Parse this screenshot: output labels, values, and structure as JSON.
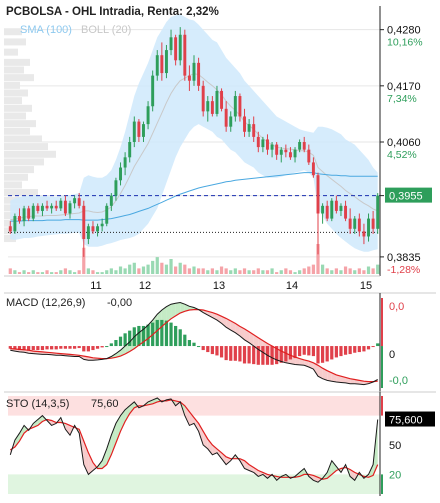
{
  "header": {
    "title": "PCBOLSA - OHL Intradia, Renta: 2,32%",
    "sma_label": "SMA (100)",
    "boll_label": "BOLL (20)"
  },
  "colors": {
    "up": "#2e9e5b",
    "down": "#e0404a",
    "boll_fill": "#cfe9fb",
    "sma": "#4aa8e0",
    "last_price_bg": "#2e9e5b",
    "stoch_value_bg": "#000000",
    "overbought_band": "#fde0e0",
    "oversold_band": "#e0f5e0",
    "grid": "#e6e6e6"
  },
  "chart_data": [
    {
      "type": "candlestick",
      "name": "price",
      "x_ticks": [
        "11",
        "12",
        "13",
        "14",
        "15"
      ],
      "y_ticks": [
        {
          "price": "0,4280",
          "pct": "10,16%"
        },
        {
          "price": "0,4170",
          "pct": "7,34%"
        },
        {
          "price": "0,4060",
          "pct": "4,52%"
        },
        {
          "price": "0,3955",
          "pct": ""
        },
        {
          "price": "0,3835",
          "pct": "-1,28%"
        }
      ],
      "ylim": [
        0.3825,
        0.4295
      ],
      "last_price": "0,3955",
      "reference_price": 0.3883,
      "ohlc": [
        [
          0.3895,
          0.3905,
          0.388,
          0.3885
        ],
        [
          0.3885,
          0.392,
          0.388,
          0.3915
        ],
        [
          0.3915,
          0.393,
          0.39,
          0.3905
        ],
        [
          0.3905,
          0.3935,
          0.3895,
          0.393
        ],
        [
          0.393,
          0.3935,
          0.3905,
          0.391
        ],
        [
          0.391,
          0.394,
          0.3905,
          0.3935
        ],
        [
          0.3935,
          0.394,
          0.392,
          0.3925
        ],
        [
          0.3925,
          0.394,
          0.3915,
          0.3935
        ],
        [
          0.3935,
          0.3945,
          0.3925,
          0.393
        ],
        [
          0.393,
          0.394,
          0.392,
          0.3935
        ],
        [
          0.3935,
          0.3945,
          0.3925,
          0.393
        ],
        [
          0.393,
          0.395,
          0.3925,
          0.3945
        ],
        [
          0.3945,
          0.3955,
          0.3915,
          0.392
        ],
        [
          0.392,
          0.3945,
          0.391,
          0.394
        ],
        [
          0.394,
          0.3955,
          0.393,
          0.395
        ],
        [
          0.395,
          0.396,
          0.393,
          0.3935
        ],
        [
          0.3935,
          0.3945,
          0.3835,
          0.387
        ],
        [
          0.387,
          0.39,
          0.386,
          0.3895
        ],
        [
          0.3895,
          0.3905,
          0.388,
          0.3885
        ],
        [
          0.3885,
          0.39,
          0.3875,
          0.3895
        ],
        [
          0.3895,
          0.391,
          0.3885,
          0.39
        ],
        [
          0.39,
          0.394,
          0.3895,
          0.3935
        ],
        [
          0.3935,
          0.396,
          0.3925,
          0.3955
        ],
        [
          0.3955,
          0.399,
          0.3945,
          0.3985
        ],
        [
          0.3985,
          0.402,
          0.3975,
          0.401
        ],
        [
          0.401,
          0.404,
          0.3995,
          0.403
        ],
        [
          0.403,
          0.407,
          0.402,
          0.406
        ],
        [
          0.406,
          0.411,
          0.405,
          0.41
        ],
        [
          0.41,
          0.4105,
          0.406,
          0.407
        ],
        [
          0.407,
          0.41,
          0.406,
          0.4095
        ],
        [
          0.4095,
          0.414,
          0.4085,
          0.413
        ],
        [
          0.413,
          0.42,
          0.412,
          0.419
        ],
        [
          0.419,
          0.424,
          0.418,
          0.423
        ],
        [
          0.423,
          0.4255,
          0.418,
          0.4195
        ],
        [
          0.4195,
          0.425,
          0.4185,
          0.424
        ],
        [
          0.424,
          0.428,
          0.423,
          0.4265
        ],
        [
          0.4265,
          0.427,
          0.421,
          0.422
        ],
        [
          0.422,
          0.4285,
          0.421,
          0.427
        ],
        [
          0.427,
          0.428,
          0.418,
          0.419
        ],
        [
          0.419,
          0.421,
          0.416,
          0.418
        ],
        [
          0.418,
          0.423,
          0.417,
          0.4215
        ],
        [
          0.4215,
          0.4225,
          0.416,
          0.417
        ],
        [
          0.417,
          0.418,
          0.411,
          0.412
        ],
        [
          0.412,
          0.415,
          0.41,
          0.414
        ],
        [
          0.414,
          0.415,
          0.411,
          0.4115
        ],
        [
          0.4115,
          0.417,
          0.411,
          0.416
        ],
        [
          0.416,
          0.4165,
          0.412,
          0.4125
        ],
        [
          0.4125,
          0.414,
          0.408,
          0.409
        ],
        [
          0.409,
          0.412,
          0.408,
          0.411
        ],
        [
          0.411,
          0.416,
          0.41,
          0.415
        ],
        [
          0.415,
          0.4155,
          0.41,
          0.411
        ],
        [
          0.411,
          0.4125,
          0.407,
          0.408
        ],
        [
          0.408,
          0.4105,
          0.407,
          0.4095
        ],
        [
          0.4095,
          0.411,
          0.406,
          0.407
        ],
        [
          0.407,
          0.408,
          0.404,
          0.405
        ],
        [
          0.405,
          0.407,
          0.404,
          0.4065
        ],
        [
          0.4065,
          0.4075,
          0.4035,
          0.4045
        ],
        [
          0.4045,
          0.406,
          0.403,
          0.4055
        ],
        [
          0.4055,
          0.406,
          0.4025,
          0.4035
        ],
        [
          0.4035,
          0.405,
          0.402,
          0.4045
        ],
        [
          0.4045,
          0.4055,
          0.403,
          0.404
        ],
        [
          0.404,
          0.405,
          0.4025,
          0.403
        ],
        [
          0.403,
          0.405,
          0.402,
          0.4045
        ],
        [
          0.4045,
          0.4065,
          0.404,
          0.406
        ],
        [
          0.406,
          0.407,
          0.404,
          0.4045
        ],
        [
          0.4045,
          0.4055,
          0.4015,
          0.402
        ],
        [
          0.402,
          0.403,
          0.399,
          0.3995
        ],
        [
          0.3995,
          0.4,
          0.384,
          0.392
        ],
        [
          0.392,
          0.394,
          0.39,
          0.3935
        ],
        [
          0.3935,
          0.3945,
          0.3905,
          0.391
        ],
        [
          0.391,
          0.395,
          0.3905,
          0.3945
        ],
        [
          0.3945,
          0.3955,
          0.392,
          0.3925
        ],
        [
          0.3925,
          0.394,
          0.3915,
          0.3935
        ],
        [
          0.3935,
          0.3945,
          0.3905,
          0.391
        ],
        [
          0.391,
          0.393,
          0.388,
          0.389
        ],
        [
          0.389,
          0.3915,
          0.388,
          0.391
        ],
        [
          0.391,
          0.392,
          0.3875,
          0.3885
        ],
        [
          0.3885,
          0.39,
          0.386,
          0.3875
        ],
        [
          0.3875,
          0.392,
          0.3865,
          0.391
        ],
        [
          0.391,
          0.3925,
          0.388,
          0.389
        ],
        [
          0.389,
          0.396,
          0.388,
          0.3955
        ]
      ],
      "volume": [
        3,
        2,
        1,
        2,
        1,
        2,
        1,
        1,
        2,
        1,
        1,
        2,
        3,
        2,
        1,
        2,
        14,
        3,
        2,
        1,
        1,
        2,
        3,
        2,
        4,
        3,
        5,
        6,
        3,
        4,
        5,
        7,
        9,
        6,
        5,
        8,
        4,
        6,
        5,
        3,
        4,
        3,
        3,
        2,
        3,
        2,
        4,
        3,
        2,
        3,
        2,
        3,
        2,
        2,
        3,
        2,
        2,
        3,
        1,
        2,
        3,
        2,
        1,
        2,
        3,
        4,
        5,
        16,
        5,
        3,
        2,
        3,
        2,
        4,
        3,
        2,
        3,
        2,
        4,
        3,
        5
      ],
      "boll_upper": [
        0.3945,
        0.395,
        0.3952,
        0.3955,
        0.3955,
        0.3956,
        0.3955,
        0.3954,
        0.3954,
        0.3953,
        0.3953,
        0.3954,
        0.3956,
        0.3956,
        0.3958,
        0.396,
        0.399,
        0.3995,
        0.3992,
        0.399,
        0.399,
        0.3995,
        0.4005,
        0.4025,
        0.405,
        0.408,
        0.4115,
        0.415,
        0.4175,
        0.4195,
        0.4215,
        0.424,
        0.4265,
        0.428,
        0.4295,
        0.4305,
        0.4308,
        0.431,
        0.4305,
        0.43,
        0.4298,
        0.429,
        0.428,
        0.427,
        0.426,
        0.4255,
        0.424,
        0.4225,
        0.4215,
        0.4205,
        0.4195,
        0.418,
        0.417,
        0.416,
        0.415,
        0.414,
        0.413,
        0.412,
        0.411,
        0.4105,
        0.41,
        0.4095,
        0.409,
        0.4085,
        0.4082,
        0.408,
        0.4078,
        0.409,
        0.409,
        0.4088,
        0.4085,
        0.408,
        0.4075,
        0.4065,
        0.406,
        0.4055,
        0.4045,
        0.4035,
        0.4025,
        0.401,
        0.4
      ],
      "boll_lower": [
        0.387,
        0.3868,
        0.387,
        0.3872,
        0.3872,
        0.3873,
        0.3875,
        0.3876,
        0.3877,
        0.3878,
        0.3879,
        0.388,
        0.388,
        0.3881,
        0.3882,
        0.3882,
        0.386,
        0.3855,
        0.3855,
        0.3855,
        0.3857,
        0.386,
        0.3862,
        0.3865,
        0.3868,
        0.387,
        0.3872,
        0.3875,
        0.388,
        0.389,
        0.39,
        0.3915,
        0.393,
        0.3955,
        0.398,
        0.4005,
        0.403,
        0.405,
        0.4065,
        0.408,
        0.409,
        0.4095,
        0.409,
        0.4085,
        0.408,
        0.407,
        0.4065,
        0.4055,
        0.4045,
        0.404,
        0.403,
        0.402,
        0.4015,
        0.401,
        0.4,
        0.3995,
        0.399,
        0.399,
        0.399,
        0.3992,
        0.3995,
        0.3998,
        0.4,
        0.4002,
        0.4005,
        0.4,
        0.399,
        0.393,
        0.3915,
        0.39,
        0.389,
        0.388,
        0.3872,
        0.3865,
        0.3858,
        0.3852,
        0.3848,
        0.3845,
        0.3845,
        0.3848,
        0.385
      ],
      "boll_middle": [
        0.3908,
        0.3909,
        0.3911,
        0.3913,
        0.3914,
        0.3915,
        0.3915,
        0.3915,
        0.3916,
        0.3916,
        0.3916,
        0.3917,
        0.3918,
        0.3919,
        0.392,
        0.3921,
        0.3925,
        0.3925,
        0.3923,
        0.3922,
        0.3923,
        0.3927,
        0.3933,
        0.3945,
        0.3959,
        0.3975,
        0.3993,
        0.4012,
        0.4027,
        0.4042,
        0.4057,
        0.4077,
        0.4097,
        0.4117,
        0.4137,
        0.4155,
        0.4169,
        0.418,
        0.4185,
        0.419,
        0.4194,
        0.4192,
        0.4185,
        0.4177,
        0.417,
        0.4162,
        0.4152,
        0.414,
        0.413,
        0.4122,
        0.4112,
        0.41,
        0.4092,
        0.4085,
        0.4075,
        0.4067,
        0.406,
        0.4055,
        0.405,
        0.4048,
        0.4047,
        0.4046,
        0.4045,
        0.4043,
        0.4043,
        0.404,
        0.4034,
        0.401,
        0.4002,
        0.3994,
        0.3987,
        0.398,
        0.3973,
        0.3965,
        0.3959,
        0.3953,
        0.3946,
        0.394,
        0.3935,
        0.3929,
        0.3925
      ],
      "sma": [
        0.3905,
        0.3905,
        0.3905,
        0.3906,
        0.3906,
        0.3906,
        0.3906,
        0.3906,
        0.3907,
        0.3907,
        0.3907,
        0.3907,
        0.3908,
        0.3908,
        0.3908,
        0.3908,
        0.3907,
        0.3907,
        0.3907,
        0.3907,
        0.3908,
        0.3909,
        0.391,
        0.3912,
        0.3914,
        0.3916,
        0.3918,
        0.3921,
        0.3924,
        0.3927,
        0.393,
        0.3934,
        0.3938,
        0.3942,
        0.3946,
        0.395,
        0.3954,
        0.3958,
        0.3961,
        0.3964,
        0.3967,
        0.397,
        0.3972,
        0.3974,
        0.3976,
        0.3978,
        0.398,
        0.3982,
        0.3983,
        0.3985,
        0.3986,
        0.3987,
        0.3988,
        0.3989,
        0.399,
        0.3991,
        0.3992,
        0.3993,
        0.3994,
        0.3995,
        0.3996,
        0.3997,
        0.3998,
        0.3999,
        0.4,
        0.4,
        0.4,
        0.3998,
        0.3997,
        0.3996,
        0.3995,
        0.3995,
        0.3994,
        0.3994,
        0.3993,
        0.3993,
        0.3993,
        0.3993,
        0.3993,
        0.3993,
        0.3993
      ]
    },
    {
      "type": "line",
      "name": "macd",
      "label": "MACD (12,26,9)",
      "current_value": "-0,00",
      "y_ticks": [
        "0,0",
        "0",
        "-0,0"
      ],
      "macd": [
        -0.1,
        -0.12,
        -0.14,
        -0.15,
        -0.17,
        -0.18,
        -0.19,
        -0.2,
        -0.2,
        -0.21,
        -0.22,
        -0.22,
        -0.23,
        -0.24,
        -0.25,
        -0.25,
        -0.32,
        -0.34,
        -0.34,
        -0.33,
        -0.32,
        -0.3,
        -0.25,
        -0.18,
        -0.1,
        0.0,
        0.1,
        0.22,
        0.32,
        0.4,
        0.5,
        0.62,
        0.76,
        0.86,
        0.94,
        1.0,
        1.02,
        1.04,
        1.0,
        0.95,
        0.92,
        0.87,
        0.8,
        0.74,
        0.68,
        0.62,
        0.54,
        0.45,
        0.38,
        0.32,
        0.24,
        0.15,
        0.08,
        0.0,
        -0.08,
        -0.15,
        -0.22,
        -0.28,
        -0.33,
        -0.37,
        -0.4,
        -0.42,
        -0.44,
        -0.45,
        -0.46,
        -0.5,
        -0.55,
        -0.72,
        -0.78,
        -0.82,
        -0.84,
        -0.86,
        -0.87,
        -0.88,
        -0.9,
        -0.9,
        -0.91,
        -0.92,
        -0.9,
        -0.86,
        -0.8
      ],
      "signal": [
        -0.06,
        -0.07,
        -0.08,
        -0.09,
        -0.1,
        -0.12,
        -0.13,
        -0.14,
        -0.15,
        -0.16,
        -0.17,
        -0.18,
        -0.19,
        -0.2,
        -0.21,
        -0.22,
        -0.24,
        -0.26,
        -0.28,
        -0.29,
        -0.3,
        -0.3,
        -0.29,
        -0.27,
        -0.24,
        -0.19,
        -0.13,
        -0.06,
        0.02,
        0.1,
        0.18,
        0.27,
        0.37,
        0.47,
        0.56,
        0.65,
        0.72,
        0.79,
        0.83,
        0.86,
        0.87,
        0.87,
        0.86,
        0.83,
        0.8,
        0.76,
        0.71,
        0.66,
        0.6,
        0.54,
        0.47,
        0.41,
        0.34,
        0.27,
        0.2,
        0.13,
        0.06,
        0.0,
        -0.06,
        -0.12,
        -0.17,
        -0.22,
        -0.26,
        -0.3,
        -0.33,
        -0.36,
        -0.4,
        -0.46,
        -0.53,
        -0.59,
        -0.64,
        -0.69,
        -0.72,
        -0.75,
        -0.78,
        -0.8,
        -0.82,
        -0.84,
        -0.85,
        -0.85,
        -0.84
      ]
    },
    {
      "type": "line",
      "name": "stochastic",
      "label": "STO (14,3,5)",
      "current_value": "75,60",
      "current_value_box": "75,600",
      "y_ticks": [
        "50",
        "20"
      ],
      "ylim": [
        0,
        100
      ],
      "k": [
        40,
        55,
        62,
        70,
        65,
        72,
        76,
        80,
        75,
        70,
        72,
        78,
        66,
        60,
        70,
        62,
        30,
        20,
        24,
        28,
        34,
        46,
        60,
        72,
        80,
        86,
        90,
        94,
        88,
        90,
        94,
        96,
        98,
        94,
        96,
        97,
        90,
        94,
        80,
        70,
        72,
        64,
        50,
        46,
        40,
        42,
        36,
        30,
        34,
        40,
        34,
        26,
        24,
        22,
        18,
        20,
        16,
        20,
        14,
        18,
        20,
        16,
        18,
        22,
        26,
        18,
        14,
        12,
        16,
        22,
        34,
        28,
        22,
        30,
        18,
        14,
        22,
        16,
        20,
        30,
        76
      ],
      "d": [
        45,
        48,
        54,
        62,
        66,
        68,
        70,
        74,
        76,
        75,
        73,
        73,
        72,
        70,
        68,
        66,
        54,
        42,
        32,
        26,
        26,
        30,
        40,
        52,
        64,
        74,
        82,
        88,
        90,
        90,
        91,
        92,
        94,
        95,
        95,
        96,
        95,
        94,
        90,
        84,
        78,
        72,
        64,
        56,
        50,
        46,
        42,
        38,
        36,
        36,
        36,
        34,
        30,
        27,
        24,
        22,
        20,
        19,
        18,
        17,
        17,
        17,
        17,
        18,
        20,
        20,
        19,
        17,
        15,
        16,
        20,
        24,
        26,
        27,
        25,
        22,
        20,
        18,
        17,
        19,
        30
      ]
    }
  ]
}
